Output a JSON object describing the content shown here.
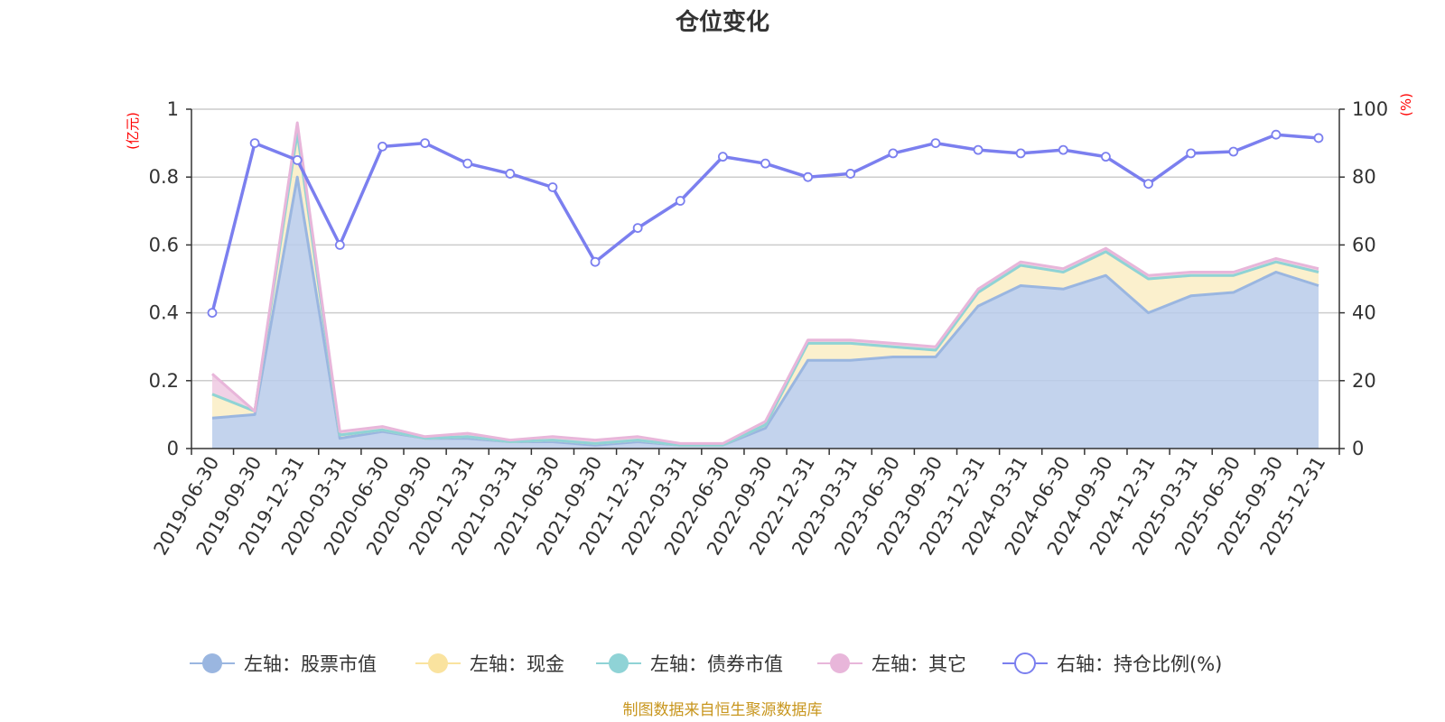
{
  "chart_data": {
    "type": "area",
    "title": "仓位变化",
    "left_unit": "(亿元)",
    "right_unit": "(%)",
    "source": "制图数据来自恒生聚源数据库",
    "categories": [
      "2019-06-30",
      "2019-09-30",
      "2019-12-31",
      "2020-03-31",
      "2020-06-30",
      "2020-09-30",
      "2020-12-31",
      "2021-03-31",
      "2021-06-30",
      "2021-09-30",
      "2021-12-31",
      "2022-03-31",
      "2022-06-30",
      "2022-09-30",
      "2022-12-31",
      "2023-03-31",
      "2023-06-30",
      "2023-09-30",
      "2023-12-31",
      "2024-03-31",
      "2024-06-30",
      "2024-09-30",
      "2024-12-31",
      "2025-03-31",
      "2025-06-30",
      "2025-09-30",
      "2025-12-31"
    ],
    "y_left": {
      "min": 0,
      "max": 1,
      "ticks": [
        "0",
        "0.2",
        "0.4",
        "0.6",
        "0.8",
        "1"
      ]
    },
    "y_right": {
      "min": 0,
      "max": 100,
      "ticks": [
        "0",
        "20",
        "40",
        "60",
        "80",
        "100"
      ]
    },
    "grid": true,
    "legend_position": "bottom",
    "series": [
      {
        "name": "左轴：股票市值",
        "axis": "left",
        "stacked": true,
        "color": "#9ab6e0",
        "fill": "#b8cbea",
        "values": [
          0.09,
          0.1,
          0.8,
          0.03,
          0.05,
          0.03,
          0.03,
          0.02,
          0.02,
          0.01,
          0.02,
          0.01,
          0.01,
          0.06,
          0.26,
          0.26,
          0.27,
          0.27,
          0.42,
          0.48,
          0.47,
          0.51,
          0.4,
          0.45,
          0.46,
          0.52,
          0.48
        ]
      },
      {
        "name": "左轴：现金",
        "axis": "left",
        "stacked": true,
        "color": "#fae39f",
        "fill": "#faedc4",
        "values": [
          0.07,
          0.01,
          0.13,
          0.01,
          0.005,
          0.0,
          0.005,
          0.0,
          0.005,
          0.005,
          0.005,
          0.0,
          0.0,
          0.01,
          0.05,
          0.05,
          0.03,
          0.02,
          0.04,
          0.06,
          0.05,
          0.07,
          0.1,
          0.06,
          0.05,
          0.03,
          0.04
        ]
      },
      {
        "name": "左轴：债券市值",
        "axis": "left",
        "stacked": true,
        "color": "#8fd3d6",
        "fill": "#8fd3d6",
        "values": [
          0,
          0,
          0,
          0,
          0,
          0,
          0,
          0,
          0,
          0,
          0,
          0,
          0,
          0,
          0,
          0,
          0,
          0,
          0,
          0,
          0,
          0,
          0,
          0,
          0,
          0,
          0
        ]
      },
      {
        "name": "左轴：其它",
        "axis": "left",
        "stacked": true,
        "color": "#e8b6da",
        "fill": "#efc9e2",
        "values": [
          0.06,
          0.0,
          0.03,
          0.01,
          0.01,
          0.005,
          0.01,
          0.005,
          0.01,
          0.01,
          0.01,
          0.005,
          0.005,
          0.01,
          0.01,
          0.01,
          0.01,
          0.01,
          0.01,
          0.01,
          0.01,
          0.01,
          0.01,
          0.01,
          0.01,
          0.01,
          0.01
        ]
      },
      {
        "name": "右轴：持仓比例(%)",
        "axis": "right",
        "stacked": false,
        "color": "#7b7fef",
        "values": [
          40,
          90,
          85,
          60,
          89,
          90,
          84,
          81,
          77,
          55,
          65,
          73,
          86,
          84,
          80,
          81,
          87,
          90,
          88,
          87,
          88,
          86,
          78,
          87,
          87.5,
          92.5,
          91.5
        ]
      }
    ]
  }
}
